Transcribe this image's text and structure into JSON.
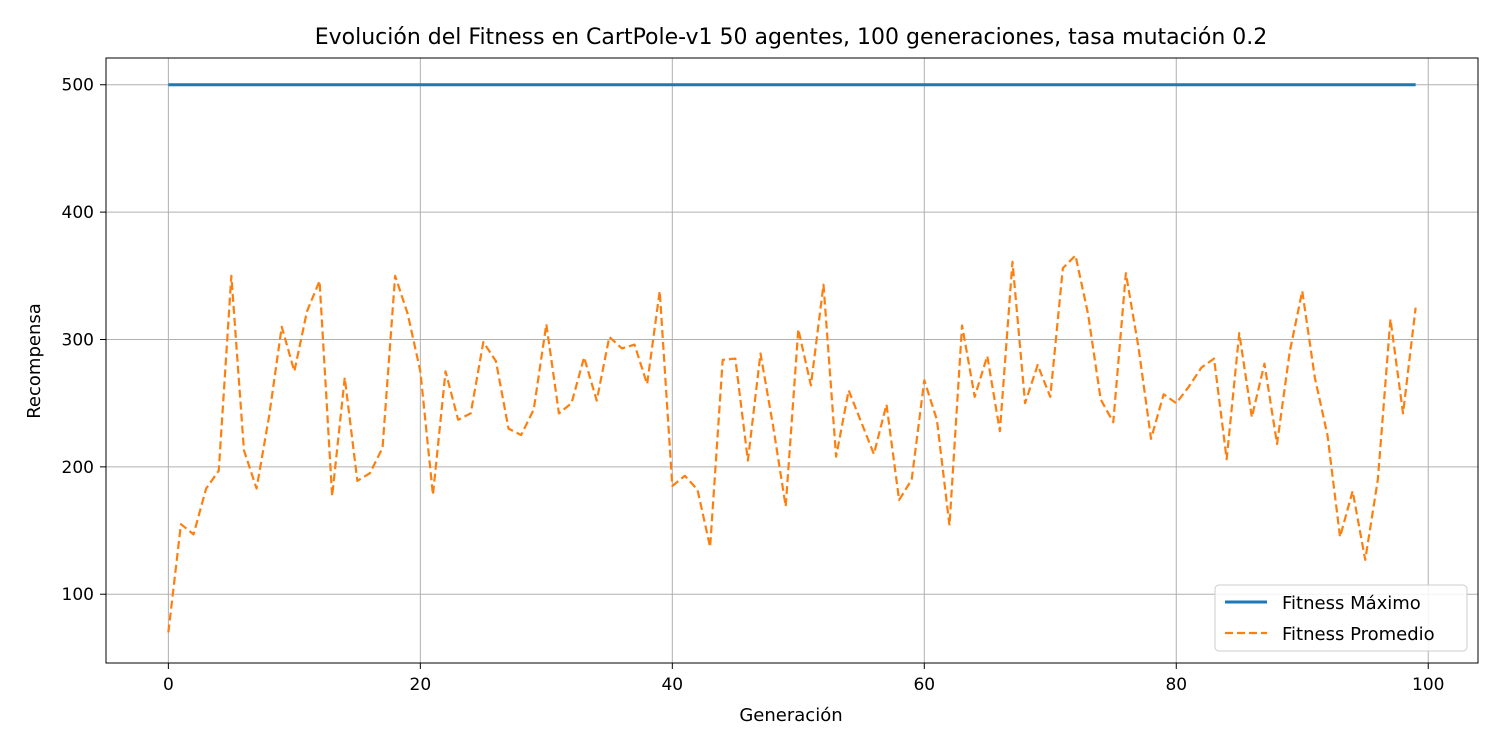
{
  "chart_data": {
    "type": "line",
    "title": "Evolución del Fitness en CartPole-v1 50 agentes, 100 generaciones, tasa mutación 0.2",
    "xlabel": "Generación",
    "ylabel": "Recompensa",
    "xlim": [
      -4.95,
      103.95
    ],
    "ylim": [
      46,
      521
    ],
    "xticks": [
      0,
      20,
      40,
      60,
      80,
      100
    ],
    "yticks": [
      100,
      200,
      300,
      400,
      500
    ],
    "grid": true,
    "legend_position": "lower right",
    "x": [
      0,
      1,
      2,
      3,
      4,
      5,
      6,
      7,
      8,
      9,
      10,
      11,
      12,
      13,
      14,
      15,
      16,
      17,
      18,
      19,
      20,
      21,
      22,
      23,
      24,
      25,
      26,
      27,
      28,
      29,
      30,
      31,
      32,
      33,
      34,
      35,
      36,
      37,
      38,
      39,
      40,
      41,
      42,
      43,
      44,
      45,
      46,
      47,
      48,
      49,
      50,
      51,
      52,
      53,
      54,
      55,
      56,
      57,
      58,
      59,
      60,
      61,
      62,
      63,
      64,
      65,
      66,
      67,
      68,
      69,
      70,
      71,
      72,
      73,
      74,
      75,
      76,
      77,
      78,
      79,
      80,
      81,
      82,
      83,
      84,
      85,
      86,
      87,
      88,
      89,
      90,
      91,
      92,
      93,
      94,
      95,
      96,
      97,
      98,
      99
    ],
    "series": [
      {
        "name": "Fitness Máximo",
        "color": "#1f77b4",
        "style": "solid",
        "values": [
          500,
          500,
          500,
          500,
          500,
          500,
          500,
          500,
          500,
          500,
          500,
          500,
          500,
          500,
          500,
          500,
          500,
          500,
          500,
          500,
          500,
          500,
          500,
          500,
          500,
          500,
          500,
          500,
          500,
          500,
          500,
          500,
          500,
          500,
          500,
          500,
          500,
          500,
          500,
          500,
          500,
          500,
          500,
          500,
          500,
          500,
          500,
          500,
          500,
          500,
          500,
          500,
          500,
          500,
          500,
          500,
          500,
          500,
          500,
          500,
          500,
          500,
          500,
          500,
          500,
          500,
          500,
          500,
          500,
          500,
          500,
          500,
          500,
          500,
          500,
          500,
          500,
          500,
          500,
          500,
          500,
          500,
          500,
          500,
          500,
          500,
          500,
          500,
          500,
          500,
          500,
          500,
          500,
          500,
          500,
          500,
          500,
          500,
          500,
          500
        ]
      },
      {
        "name": "Fitness Promedio",
        "color": "#ff7f0e",
        "style": "dashed",
        "values": [
          70,
          155,
          147,
          183,
          197,
          350,
          213,
          183,
          240,
          310,
          275,
          322,
          346,
          177,
          270,
          189,
          195,
          215,
          350,
          320,
          275,
          178,
          275,
          237,
          242,
          298,
          283,
          230,
          225,
          245,
          312,
          242,
          250,
          286,
          252,
          302,
          293,
          296,
          265,
          338,
          185,
          193,
          182,
          137,
          284,
          285,
          205,
          289,
          232,
          169,
          308,
          264,
          343,
          208,
          260,
          235,
          210,
          249,
          174,
          190,
          268,
          237,
          154,
          311,
          255,
          287,
          228,
          361,
          250,
          280,
          255,
          356,
          366,
          320,
          253,
          235,
          352,
          294,
          222,
          257,
          250,
          263,
          278,
          285,
          206,
          305,
          239,
          281,
          218,
          290,
          338,
          270,
          225,
          145,
          181,
          127,
          190,
          316,
          242,
          325
        ]
      }
    ]
  }
}
